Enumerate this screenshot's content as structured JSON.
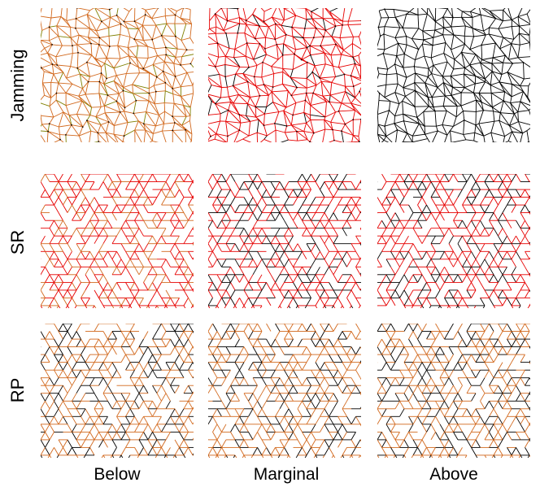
{
  "rows": [
    {
      "label": "Jamming",
      "lattice": "disordered",
      "panels": [
        {
          "column": "Below",
          "bond_color": "#d2691e",
          "secondary_color": "#808000"
        },
        {
          "column": "Marginal",
          "bond_color": "#e60000",
          "secondary_color": "#000000"
        },
        {
          "column": "Above",
          "bond_color": "#000000",
          "secondary_color": "#000000"
        }
      ]
    },
    {
      "label": "SR",
      "lattice": "triangular",
      "panels": [
        {
          "column": "Below",
          "bond_color": "#e60000",
          "secondary_color": "#d2691e"
        },
        {
          "column": "Marginal",
          "bond_color": "#e60000",
          "secondary_color": "#000000"
        },
        {
          "column": "Above",
          "bond_color": "#e60000",
          "secondary_color": "#000000"
        }
      ]
    },
    {
      "label": "RP",
      "lattice": "triangular",
      "panels": [
        {
          "column": "Below",
          "bond_color": "#d2691e",
          "secondary_color": "#000000"
        },
        {
          "column": "Marginal",
          "bond_color": "#d2691e",
          "secondary_color": "#000000"
        },
        {
          "column": "Above",
          "bond_color": "#d2691e",
          "secondary_color": "#000000"
        }
      ]
    }
  ],
  "columns": [
    "Below",
    "Marginal",
    "Above"
  ]
}
